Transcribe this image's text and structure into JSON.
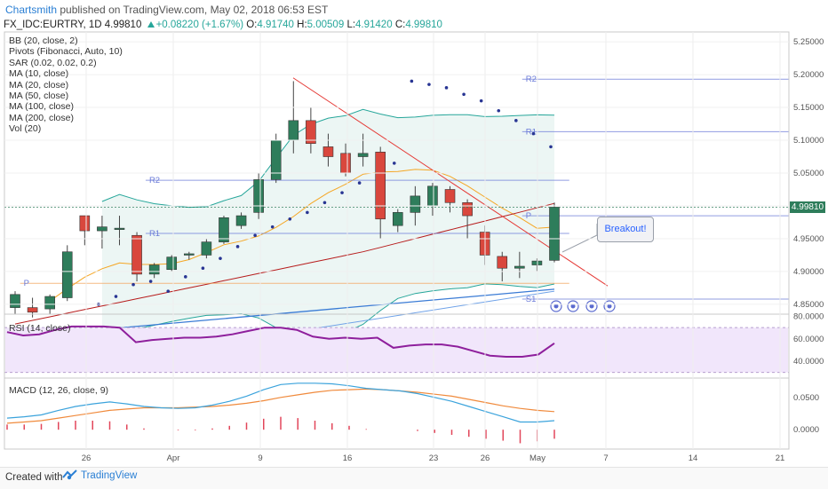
{
  "header": {
    "author": "Chartsmith",
    "publish_text": "published on TradingView.com, May 02, 2018 06:53 EST",
    "symbol": "FX_IDC:EURTRY, 1D",
    "last": "4.99810",
    "change": "+0.08220 (+1.67%)",
    "o_label": "O:",
    "open": "4.91740",
    "h_label": "H:",
    "high": "5.00509",
    "l_label": "L:",
    "low": "4.91420",
    "c_label": "C:",
    "close": "4.99810"
  },
  "indicators": [
    "BB (20, close, 2)",
    "Pivots (Fibonacci, Auto, 10)",
    "SAR (0.02, 0.02, 0.2)",
    "MA (10, close)",
    "MA (20, close)",
    "MA (50, close)",
    "MA (100, close)",
    "MA (200, close)",
    "Vol (20)"
  ],
  "rsi_title": "RSI (14, close)",
  "macd_title": "MACD (12, 26, close, 9)",
  "annotation": "Breakout!",
  "price_tag": "4.99810",
  "footer": {
    "created": "Created with",
    "brand": "TradingView"
  },
  "colors": {
    "up": "#2e7d5b",
    "down": "#d9473d",
    "bb": "#26a69a",
    "bb_fill": "#e7f4f1",
    "ma_orange": "#f5a623",
    "ma_red": "#b71c1c",
    "ma_blue": "#3a7bd5",
    "sar": "#283593",
    "rsi": "#8e1f9c",
    "rsi_band": "#f1e6fb",
    "macd": "#3ba3dc",
    "signal": "#f08a3c",
    "hist": "#e2465a",
    "pivot": "#6b7bd8",
    "trendline": "#e53935"
  },
  "chart_data": {
    "type": "candlestick",
    "symbol": "FX_IDC:EURTRY",
    "timeframe": "1D",
    "x_tick_labels": [
      "26",
      "Apr",
      "9",
      "16",
      "23",
      "26",
      "May",
      "7",
      "14",
      "21"
    ],
    "price_axis": {
      "labels": [
        "5.25000",
        "5.20000",
        "5.15000",
        "5.10000",
        "5.05000",
        "5.00000",
        "4.95000",
        "4.90000",
        "4.85000"
      ],
      "ylim": [
        4.835,
        5.265
      ]
    },
    "rsi_axis": {
      "labels": [
        "80.0000",
        "60.0000",
        "40.0000"
      ],
      "ylim": [
        25,
        82
      ],
      "band": [
        30,
        70
      ]
    },
    "macd_axis": {
      "labels": [
        "0.0500",
        "0.0000"
      ],
      "ylim": [
        -0.03,
        0.08
      ]
    },
    "candles": [
      {
        "o": 4.845,
        "h": 4.87,
        "l": 4.835,
        "c": 4.865
      },
      {
        "o": 4.845,
        "h": 4.86,
        "l": 4.83,
        "c": 4.838
      },
      {
        "o": 4.843,
        "h": 4.865,
        "l": 4.835,
        "c": 4.862
      },
      {
        "o": 4.86,
        "h": 4.94,
        "l": 4.855,
        "c": 4.93
      },
      {
        "o": 4.985,
        "h": 4.985,
        "l": 4.94,
        "c": 4.962
      },
      {
        "o": 4.962,
        "h": 4.985,
        "l": 4.935,
        "c": 4.968
      },
      {
        "o": 4.965,
        "h": 4.985,
        "l": 4.94,
        "c": 4.966
      },
      {
        "o": 4.955,
        "h": 4.96,
        "l": 4.885,
        "c": 4.896
      },
      {
        "o": 4.896,
        "h": 4.913,
        "l": 4.89,
        "c": 4.91
      },
      {
        "o": 4.903,
        "h": 4.925,
        "l": 4.9,
        "c": 4.922
      },
      {
        "o": 4.925,
        "h": 4.93,
        "l": 4.918,
        "c": 4.927
      },
      {
        "o": 4.925,
        "h": 4.95,
        "l": 4.92,
        "c": 4.945
      },
      {
        "o": 4.945,
        "h": 4.985,
        "l": 4.942,
        "c": 4.982
      },
      {
        "o": 4.97,
        "h": 4.99,
        "l": 4.965,
        "c": 4.985
      },
      {
        "o": 4.99,
        "h": 5.05,
        "l": 4.98,
        "c": 5.04
      },
      {
        "o": 5.04,
        "h": 5.11,
        "l": 5.035,
        "c": 5.1
      },
      {
        "o": 5.1,
        "h": 5.19,
        "l": 5.08,
        "c": 5.13
      },
      {
        "o": 5.13,
        "h": 5.15,
        "l": 5.08,
        "c": 5.095
      },
      {
        "o": 5.09,
        "h": 5.11,
        "l": 5.06,
        "c": 5.075
      },
      {
        "o": 5.08,
        "h": 5.095,
        "l": 5.045,
        "c": 5.05
      },
      {
        "o": 5.075,
        "h": 5.11,
        "l": 5.06,
        "c": 5.08
      },
      {
        "o": 5.082,
        "h": 5.09,
        "l": 4.95,
        "c": 4.98
      },
      {
        "o": 4.97,
        "h": 4.995,
        "l": 4.96,
        "c": 4.99
      },
      {
        "o": 4.99,
        "h": 5.03,
        "l": 4.97,
        "c": 5.015
      },
      {
        "o": 5.0,
        "h": 5.035,
        "l": 4.985,
        "c": 5.03
      },
      {
        "o": 5.025,
        "h": 5.03,
        "l": 4.99,
        "c": 5.005
      },
      {
        "o": 5.005,
        "h": 5.01,
        "l": 4.95,
        "c": 4.985
      },
      {
        "o": 4.96,
        "h": 4.97,
        "l": 4.91,
        "c": 4.925
      },
      {
        "o": 4.923,
        "h": 4.93,
        "l": 4.885,
        "c": 4.905
      },
      {
        "o": 4.905,
        "h": 4.93,
        "l": 4.89,
        "c": 4.908
      },
      {
        "o": 4.91,
        "h": 4.92,
        "l": 4.9,
        "c": 4.916
      },
      {
        "o": 4.917,
        "h": 5.005,
        "l": 4.914,
        "c": 4.998
      }
    ],
    "pivots": [
      {
        "label": "R2",
        "value": 5.039,
        "from": 0.18,
        "to": 0.72
      },
      {
        "label": "R1",
        "value": 4.958,
        "from": 0.18,
        "to": 0.72
      },
      {
        "label": "P",
        "value": 4.882,
        "from": 0.02,
        "to": 0.72
      },
      {
        "label": "R2",
        "value": 5.193,
        "from": 0.66,
        "to": 1.0
      },
      {
        "label": "R1",
        "value": 5.113,
        "from": 0.66,
        "to": 1.0
      },
      {
        "label": "P",
        "value": 4.985,
        "from": 0.66,
        "to": 1.0
      },
      {
        "label": "S1",
        "value": 4.858,
        "from": 0.66,
        "to": 1.0
      }
    ],
    "rsi": [
      66,
      63,
      64,
      68,
      71,
      71,
      71,
      70,
      57,
      59,
      60,
      61,
      61,
      62,
      64,
      67,
      70,
      70,
      68,
      62,
      60,
      61,
      60,
      61,
      52,
      54,
      55,
      55,
      53,
      49,
      45,
      44,
      44,
      46,
      56
    ],
    "macd": [
      0.018,
      0.02,
      0.023,
      0.03,
      0.036,
      0.04,
      0.043,
      0.04,
      0.036,
      0.034,
      0.033,
      0.034,
      0.038,
      0.044,
      0.052,
      0.062,
      0.07,
      0.072,
      0.072,
      0.071,
      0.068,
      0.064,
      0.062,
      0.06,
      0.056,
      0.05,
      0.044,
      0.036,
      0.028,
      0.02,
      0.012,
      0.012,
      0.014
    ],
    "signal": [
      0.01,
      0.012,
      0.014,
      0.018,
      0.022,
      0.026,
      0.03,
      0.032,
      0.034,
      0.034,
      0.034,
      0.035,
      0.036,
      0.038,
      0.041,
      0.045,
      0.05,
      0.054,
      0.058,
      0.061,
      0.062,
      0.063,
      0.062,
      0.06,
      0.058,
      0.055,
      0.052,
      0.047,
      0.042,
      0.037,
      0.033,
      0.03,
      0.028
    ],
    "histogram": [
      0.008,
      0.008,
      0.009,
      0.012,
      0.014,
      0.014,
      0.013,
      0.008,
      0.002,
      0.0,
      -0.001,
      -0.001,
      0.002,
      0.006,
      0.011,
      0.017,
      0.02,
      0.018,
      0.014,
      0.01,
      0.006,
      0.001,
      0.0,
      0.0,
      -0.002,
      -0.005,
      -0.008,
      -0.011,
      -0.014,
      -0.017,
      -0.021,
      -0.018,
      -0.014
    ]
  }
}
